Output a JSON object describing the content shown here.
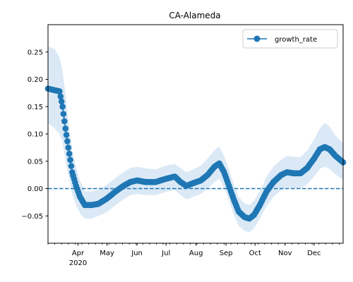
{
  "chart_data": {
    "type": "line",
    "title": "CA-Alameda",
    "xlabel": "",
    "ylabel": "",
    "x_range": [
      "2020-03-01",
      "2020-12-31"
    ],
    "ylim": [
      -0.1,
      0.3
    ],
    "y_ticks": [
      -0.05,
      0.0,
      0.05,
      0.1,
      0.15,
      0.2,
      0.25
    ],
    "y_tick_labels": [
      "−0.05",
      "0.00",
      "0.05",
      "0.10",
      "0.15",
      "0.20",
      "0.25"
    ],
    "x_ticks": [
      {
        "date": "2020-04-01",
        "label": "Apr",
        "sublabel": "2020"
      },
      {
        "date": "2020-05-01",
        "label": "May"
      },
      {
        "date": "2020-06-01",
        "label": "Jun"
      },
      {
        "date": "2020-07-01",
        "label": "Jul"
      },
      {
        "date": "2020-08-01",
        "label": "Aug"
      },
      {
        "date": "2020-09-01",
        "label": "Sep"
      },
      {
        "date": "2020-10-01",
        "label": "Oct"
      },
      {
        "date": "2020-11-01",
        "label": "Nov"
      },
      {
        "date": "2020-12-01",
        "label": "Dec"
      }
    ],
    "reference_line": {
      "y": 0.0,
      "style": "dashed",
      "color": "#1f77b4"
    },
    "legend": {
      "position": "upper right",
      "entries": [
        "growth_rate"
      ]
    },
    "series": [
      {
        "name": "growth_rate",
        "color": "#1f77b4",
        "band_color": "#dbe9f6",
        "points": [
          {
            "x": "2020-03-01",
            "y": 0.183,
            "lo": 0.12,
            "hi": 0.26
          },
          {
            "x": "2020-03-08",
            "y": 0.18,
            "lo": 0.11,
            "hi": 0.255
          },
          {
            "x": "2020-03-13",
            "y": 0.178,
            "lo": 0.1,
            "hi": 0.24
          },
          {
            "x": "2020-03-16",
            "y": 0.15,
            "lo": 0.085,
            "hi": 0.215
          },
          {
            "x": "2020-03-19",
            "y": 0.11,
            "lo": 0.05,
            "hi": 0.175
          },
          {
            "x": "2020-03-22",
            "y": 0.075,
            "lo": 0.025,
            "hi": 0.125
          },
          {
            "x": "2020-03-26",
            "y": 0.03,
            "lo": -0.01,
            "hi": 0.07
          },
          {
            "x": "2020-03-30",
            "y": 0.005,
            "lo": -0.03,
            "hi": 0.04
          },
          {
            "x": "2020-04-03",
            "y": -0.015,
            "lo": -0.045,
            "hi": 0.015
          },
          {
            "x": "2020-04-08",
            "y": -0.03,
            "lo": -0.055,
            "hi": -0.005
          },
          {
            "x": "2020-04-15",
            "y": -0.03,
            "lo": -0.055,
            "hi": -0.005
          },
          {
            "x": "2020-04-22",
            "y": -0.028,
            "lo": -0.05,
            "hi": -0.002
          },
          {
            "x": "2020-05-01",
            "y": -0.018,
            "lo": -0.043,
            "hi": 0.007
          },
          {
            "x": "2020-05-10",
            "y": -0.005,
            "lo": -0.03,
            "hi": 0.02
          },
          {
            "x": "2020-05-18",
            "y": 0.005,
            "lo": -0.02,
            "hi": 0.03
          },
          {
            "x": "2020-05-25",
            "y": 0.012,
            "lo": -0.012,
            "hi": 0.038
          },
          {
            "x": "2020-06-01",
            "y": 0.015,
            "lo": -0.01,
            "hi": 0.04
          },
          {
            "x": "2020-06-10",
            "y": 0.012,
            "lo": -0.012,
            "hi": 0.037
          },
          {
            "x": "2020-06-20",
            "y": 0.012,
            "lo": -0.012,
            "hi": 0.035
          },
          {
            "x": "2020-07-01",
            "y": 0.018,
            "lo": -0.006,
            "hi": 0.042
          },
          {
            "x": "2020-07-10",
            "y": 0.022,
            "lo": -0.002,
            "hi": 0.045
          },
          {
            "x": "2020-07-16",
            "y": 0.012,
            "lo": -0.012,
            "hi": 0.037
          },
          {
            "x": "2020-07-22",
            "y": 0.005,
            "lo": -0.02,
            "hi": 0.03
          },
          {
            "x": "2020-07-29",
            "y": 0.01,
            "lo": -0.015,
            "hi": 0.035
          },
          {
            "x": "2020-08-06",
            "y": 0.015,
            "lo": -0.01,
            "hi": 0.042
          },
          {
            "x": "2020-08-13",
            "y": 0.025,
            "lo": 0.0,
            "hi": 0.055
          },
          {
            "x": "2020-08-20",
            "y": 0.04,
            "lo": 0.012,
            "hi": 0.07
          },
          {
            "x": "2020-08-25",
            "y": 0.046,
            "lo": 0.018,
            "hi": 0.077
          },
          {
            "x": "2020-08-30",
            "y": 0.03,
            "lo": 0.002,
            "hi": 0.06
          },
          {
            "x": "2020-09-04",
            "y": 0.005,
            "lo": -0.022,
            "hi": 0.035
          },
          {
            "x": "2020-09-09",
            "y": -0.02,
            "lo": -0.048,
            "hi": 0.008
          },
          {
            "x": "2020-09-14",
            "y": -0.042,
            "lo": -0.068,
            "hi": -0.015
          },
          {
            "x": "2020-09-20",
            "y": -0.052,
            "lo": -0.077,
            "hi": -0.027
          },
          {
            "x": "2020-09-25",
            "y": -0.055,
            "lo": -0.08,
            "hi": -0.03
          },
          {
            "x": "2020-09-30",
            "y": -0.048,
            "lo": -0.073,
            "hi": -0.022
          },
          {
            "x": "2020-10-06",
            "y": -0.03,
            "lo": -0.055,
            "hi": -0.005
          },
          {
            "x": "2020-10-13",
            "y": -0.005,
            "lo": -0.032,
            "hi": 0.022
          },
          {
            "x": "2020-10-20",
            "y": 0.012,
            "lo": -0.015,
            "hi": 0.04
          },
          {
            "x": "2020-10-28",
            "y": 0.025,
            "lo": -0.003,
            "hi": 0.053
          },
          {
            "x": "2020-11-03",
            "y": 0.03,
            "lo": 0.002,
            "hi": 0.06
          },
          {
            "x": "2020-11-10",
            "y": 0.028,
            "lo": 0.0,
            "hi": 0.058
          },
          {
            "x": "2020-11-17",
            "y": 0.028,
            "lo": 0.0,
            "hi": 0.058
          },
          {
            "x": "2020-11-24",
            "y": 0.038,
            "lo": 0.008,
            "hi": 0.07
          },
          {
            "x": "2020-12-01",
            "y": 0.055,
            "lo": 0.022,
            "hi": 0.09
          },
          {
            "x": "2020-12-07",
            "y": 0.072,
            "lo": 0.036,
            "hi": 0.11
          },
          {
            "x": "2020-12-12",
            "y": 0.076,
            "lo": 0.04,
            "hi": 0.12
          },
          {
            "x": "2020-12-17",
            "y": 0.072,
            "lo": 0.036,
            "hi": 0.114
          },
          {
            "x": "2020-12-23",
            "y": 0.06,
            "lo": 0.026,
            "hi": 0.097
          },
          {
            "x": "2020-12-31",
            "y": 0.048,
            "lo": 0.016,
            "hi": 0.083
          }
        ]
      }
    ]
  }
}
